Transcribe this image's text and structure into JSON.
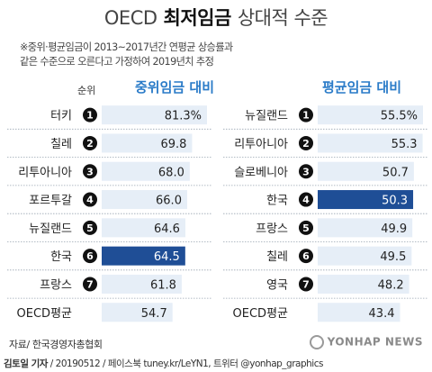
{
  "header": {
    "title_lead": "OECD",
    "title_bold": "최저임금",
    "title_rest": "상대적 수준",
    "note_line1": "※중위·평균임금이 2013~2017년간 연평균 상승률과",
    "note_line2": "같은 수준으로 오른다고 가정하여 2019년치 추정"
  },
  "rank_header": "순위",
  "colors": {
    "bar_light": "#e6eef7",
    "bar_dark_highlight": "#1f4e96",
    "row_separator": "#9aa6b2",
    "rank_circle": "#111111",
    "panel_head": "#2a7bc8"
  },
  "chart_data": [
    {
      "type": "bar",
      "orientation": "horizontal",
      "title": "중위임금 대비",
      "unit": "%",
      "highlight": "한국",
      "categories": [
        "터키",
        "칠레",
        "리투아니아",
        "포르투갈",
        "뉴질랜드",
        "한국",
        "프랑스",
        "OECD평균"
      ],
      "ranks": [
        "1",
        "2",
        "3",
        "4",
        "5",
        "6",
        "7",
        ""
      ],
      "value_labels": [
        "81.3%",
        "69.8",
        "68.0",
        "66.0",
        "64.6",
        "64.5",
        "61.8",
        "54.7"
      ],
      "values": [
        81.3,
        69.8,
        68.0,
        66.0,
        64.6,
        64.5,
        61.8,
        54.7
      ]
    },
    {
      "type": "bar",
      "orientation": "horizontal",
      "title": "평균임금 대비",
      "unit": "%",
      "highlight": "한국",
      "categories": [
        "뉴질랜드",
        "리투아니아",
        "슬로베니아",
        "한국",
        "프랑스",
        "칠레",
        "영국",
        "OECD평균"
      ],
      "ranks": [
        "1",
        "2",
        "3",
        "4",
        "5",
        "6",
        "7",
        ""
      ],
      "value_labels": [
        "55.5%",
        "55.3",
        "50.7",
        "50.3",
        "49.9",
        "49.5",
        "48.2",
        "43.4"
      ],
      "values": [
        55.5,
        55.3,
        50.7,
        50.3,
        49.9,
        49.5,
        48.2,
        43.4
      ]
    }
  ],
  "footer": {
    "source": "자료/ 한국경영자총협회",
    "credit_name": "김토일 기자",
    "credit_rest": " / 20190512 / 페이스북 tuney.kr/LeYN1, 트위터 @yonhap_graphics",
    "watermark": "YONHAP NEWS"
  }
}
